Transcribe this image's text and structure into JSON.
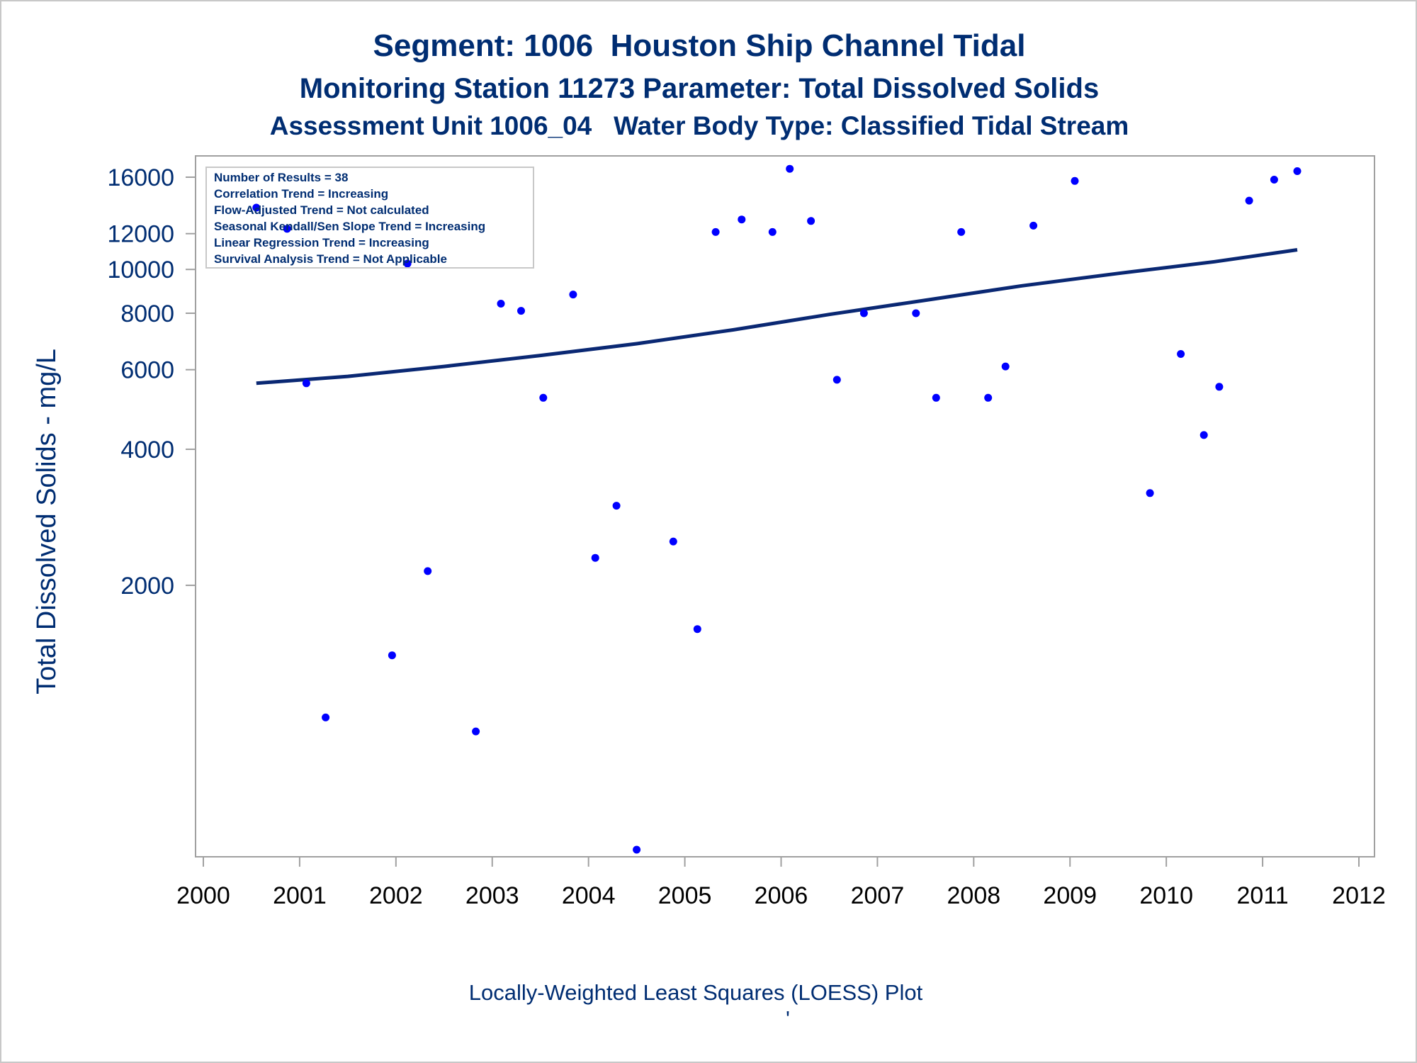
{
  "chart_data": {
    "type": "scatter",
    "title": "Segment: 1006  Houston Ship Channel Tidal",
    "subtitle": "Monitoring Station 11273 Parameter: Total Dissolved Solids",
    "subtitle2": "Assessment Unit 1006_04   Water Body Type: Classified Tidal Stream",
    "xlabel": "",
    "ylabel": "Total Dissolved Solids - mg/L",
    "footnote": "Locally-Weighted Least Squares (LOESS) Plot",
    "footnote_mark": "'",
    "x_ticks": [
      "2000",
      "2001",
      "2002",
      "2003",
      "2004",
      "2005",
      "2006",
      "2007",
      "2008",
      "2009",
      "2010",
      "2011",
      "2012"
    ],
    "y_ticks": [
      "2000",
      "4000",
      "6000",
      "8000",
      "10000",
      "12000",
      "16000"
    ],
    "xlim": [
      2000.0,
      2012.0
    ],
    "ylim": [
      520,
      17200
    ],
    "y_scale": "log",
    "grid": false,
    "legend": {
      "placement": "top-left",
      "lines": [
        "Number of Results = 38",
        "Correlation Trend = Increasing",
        "Flow-Adjusted Trend = Not calculated",
        "Seasonal Kendall/Sen Slope Trend = Increasing",
        "Linear Regression Trend = Increasing",
        "Survival Analysis Trend = Not Applicable"
      ]
    },
    "series": [
      {
        "kind": "points",
        "color": "#0000ff",
        "x": [
          2000.55,
          2000.87,
          2001.07,
          2001.27,
          2001.96,
          2002.12,
          2002.33,
          2002.83,
          2003.09,
          2003.3,
          2003.53,
          2003.84,
          2004.07,
          2004.29,
          2004.5,
          2004.88,
          2005.13,
          2005.32,
          2005.59,
          2005.91,
          2006.09,
          2006.31,
          2006.58,
          2006.86,
          2007.4,
          2007.61,
          2007.87,
          2008.15,
          2008.33,
          2008.62,
          2009.05,
          2009.83,
          2010.15,
          2010.39,
          2010.55,
          2010.86,
          2011.12,
          2011.36
        ],
        "y": [
          13700,
          12300,
          5600,
          1020,
          1400,
          10300,
          2150,
          950,
          8400,
          8100,
          5200,
          8800,
          2300,
          3000,
          520,
          2500,
          1600,
          12100,
          12900,
          12100,
          16700,
          12800,
          5700,
          8000,
          8000,
          5200,
          12100,
          5200,
          6100,
          12500,
          15700,
          3200,
          6500,
          4300,
          5500,
          14200,
          15800,
          16500
        ]
      },
      {
        "kind": "line",
        "color": "#0a2873",
        "x": [
          2000.55,
          2001.5,
          2002.5,
          2003.5,
          2004.5,
          2005.5,
          2006.5,
          2007.5,
          2008.5,
          2009.5,
          2010.5,
          2011.36
        ],
        "y": [
          5600,
          5800,
          6100,
          6450,
          6850,
          7350,
          7950,
          8550,
          9200,
          9800,
          10400,
          11050
        ]
      }
    ]
  }
}
